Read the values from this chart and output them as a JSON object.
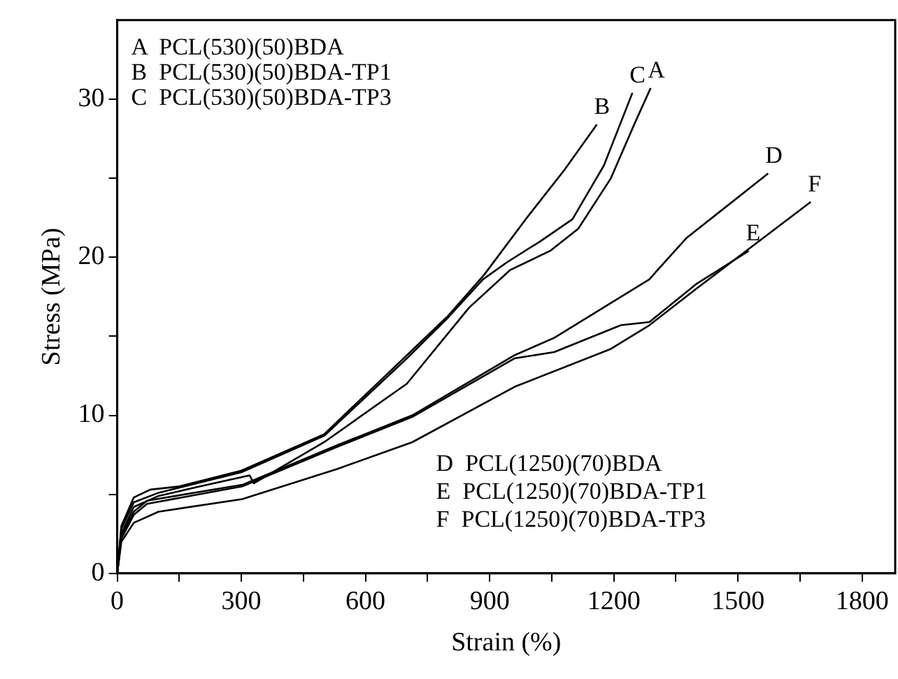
{
  "chart_data": {
    "type": "line",
    "xlabel": "Strain (%)",
    "ylabel": "Stress (MPa)",
    "xlim": [
      0,
      1880
    ],
    "ylim": [
      0,
      35
    ],
    "xticks": [
      0,
      {
        "value": 150,
        "label": null
      },
      300,
      {
        "value": 450,
        "label": null
      },
      600,
      {
        "value": 750,
        "label": null
      },
      900,
      {
        "value": 1050,
        "label": null
      },
      1200,
      {
        "value": 1350,
        "label": null
      },
      1500,
      {
        "value": 1650,
        "label": null
      },
      1800
    ],
    "yticks": [
      0,
      {
        "value": 5,
        "label": null
      },
      10,
      {
        "value": 15,
        "label": null
      },
      20,
      {
        "value": 25,
        "label": null
      },
      30
    ],
    "grid": false,
    "legend": false,
    "marker": "none",
    "line_style": "solid",
    "series": [
      {
        "color": "#000000",
        "x": [
          0,
          10,
          40,
          100,
          200,
          320,
          330,
          500,
          700,
          850,
          950,
          1046,
          1114,
          1193,
          1251,
          1289
        ],
        "values": [
          0,
          2.5,
          4.2,
          4.9,
          5.5,
          6.2,
          5.7,
          8.3,
          12,
          16.8,
          19.2,
          20.4,
          21.8,
          25,
          28.5,
          30.7
        ]
      },
      {
        "color": "#000000",
        "x": [
          0,
          10,
          40,
          80,
          150,
          300,
          500,
          700,
          800,
          887,
          987,
          1080,
          1159
        ],
        "values": [
          0,
          3,
          4.8,
          5.3,
          5.5,
          6.5,
          8.8,
          13.8,
          16.3,
          18.9,
          22.4,
          25.5,
          28.4
        ]
      },
      {
        "color": "#000000",
        "x": [
          0,
          10,
          40,
          100,
          300,
          500,
          700,
          800,
          884,
          943,
          1022,
          1100,
          1176,
          1245
        ],
        "values": [
          0,
          2.8,
          4.5,
          5.1,
          6.4,
          8.7,
          13.6,
          16.2,
          18.6,
          19.7,
          21,
          22.4,
          25.8,
          30.4
        ]
      },
      {
        "color": "#000000",
        "x": [
          0,
          10,
          40,
          72,
          302,
          531,
          713,
          960,
          1056,
          1286,
          1306,
          1375,
          1573
        ],
        "values": [
          0,
          2.4,
          3.9,
          4.6,
          5.6,
          8.1,
          10,
          13.8,
          14.9,
          18.6,
          19.2,
          21.2,
          25.3
        ]
      },
      {
        "color": "#000000",
        "x": [
          0,
          10,
          40,
          72,
          302,
          531,
          713,
          960,
          1056,
          1217,
          1286,
          1399,
          1526
        ],
        "values": [
          0,
          2.2,
          3.7,
          4.4,
          5.5,
          8,
          9.9,
          13.6,
          14,
          15.7,
          15.9,
          18.3,
          20.4
        ]
      },
      {
        "color": "#000000",
        "x": [
          0,
          10,
          40,
          100,
          302,
          531,
          713,
          960,
          1193,
          1286,
          1399,
          1676
        ],
        "values": [
          0,
          2,
          3.2,
          3.9,
          4.7,
          6.6,
          8.3,
          11.8,
          14.2,
          15.7,
          18,
          23.5
        ]
      }
    ],
    "annotations": [
      "A  PCL(530)(50)BDA",
      "B  PCL(530)(50)BDA-TP1",
      "C  PCL(530)(50)BDA-TP3",
      "D  PCL(1250)(70)BDA",
      "E  PCL(1250)(70)BDA-TP1",
      "F  PCL(1250)(70)BDA-TP3",
      {
        "text": "A",
        "x": 1289,
        "y": 30.7
      },
      {
        "text": "B",
        "x": 1159,
        "y": 28.4
      },
      {
        "text": "C",
        "x": 1245,
        "y": 30.4
      },
      {
        "text": "D",
        "x": 1573,
        "y": 25.3
      },
      {
        "text": "E",
        "x": 1526,
        "y": 20.4
      },
      {
        "text": "F",
        "x": 1676,
        "y": 23.5
      }
    ]
  }
}
